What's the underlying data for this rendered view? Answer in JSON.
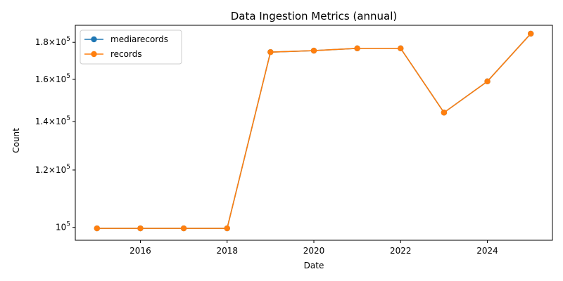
{
  "chart_data": {
    "type": "line",
    "title": "Data Ingestion Metrics (annual)",
    "xlabel": "Date",
    "ylabel": "Count",
    "x": [
      2015,
      2016,
      2017,
      2018,
      2019,
      2020,
      2021,
      2022,
      2023,
      2024,
      2025
    ],
    "series": [
      {
        "name": "mediarecords",
        "color": "#1f77b4",
        "values": [
          99700,
          99700,
          99700,
          99700,
          174500,
          175300,
          176600,
          176600,
          144000,
          159000,
          185000
        ]
      },
      {
        "name": "records",
        "color": "#ff7f0e",
        "values": [
          99700,
          99700,
          99700,
          99700,
          174500,
          175300,
          176600,
          176600,
          144000,
          159000,
          185000
        ]
      }
    ],
    "x_ticks": [
      {
        "value": 2016,
        "label": "2016"
      },
      {
        "value": 2018,
        "label": "2018"
      },
      {
        "value": 2020,
        "label": "2020"
      },
      {
        "value": 2022,
        "label": "2022"
      },
      {
        "value": 2024,
        "label": "2024"
      }
    ],
    "y_ticks": [
      {
        "value": 100000,
        "mantissa": "",
        "exp": "5"
      },
      {
        "value": 120000,
        "mantissa": "1.2",
        "exp": "5"
      },
      {
        "value": 140000,
        "mantissa": "1.4",
        "exp": "5"
      },
      {
        "value": 160000,
        "mantissa": "1.6",
        "exp": "5"
      },
      {
        "value": 180000,
        "mantissa": "1.8",
        "exp": "5"
      }
    ],
    "xlim": [
      2014.5,
      2025.5
    ],
    "ylim": [
      96000,
      190000
    ],
    "y_scale": "log",
    "grid": false,
    "legend_position": "top-left",
    "marker": "circle"
  }
}
